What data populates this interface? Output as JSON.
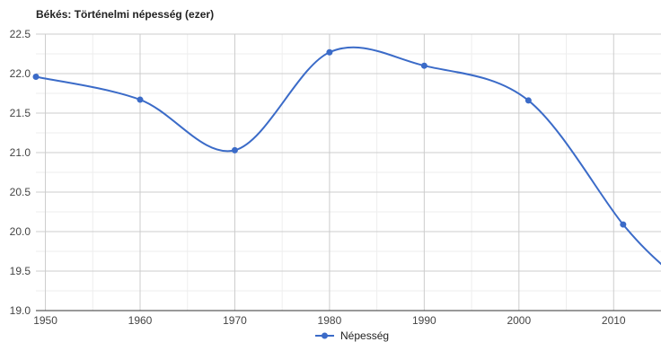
{
  "chart_data": {
    "type": "line",
    "title": "Békés: Történelmi népesség (ezer)",
    "xlabel": "",
    "ylabel": "",
    "series": [
      {
        "name": "Népesség",
        "color": "#3b6bc8",
        "points": [
          {
            "x": 1949,
            "y": 21.96
          },
          {
            "x": 1960,
            "y": 21.67
          },
          {
            "x": 1970,
            "y": 21.03
          },
          {
            "x": 1980,
            "y": 22.27
          },
          {
            "x": 1990,
            "y": 22.1
          },
          {
            "x": 2001,
            "y": 21.66
          },
          {
            "x": 2011,
            "y": 20.09
          },
          {
            "x": 2016,
            "y": 19.48
          }
        ]
      }
    ],
    "x_ticks": [
      "1950",
      "1960",
      "1970",
      "1980",
      "1990",
      "2000",
      "2010"
    ],
    "y_ticks": [
      "19.0",
      "19.5",
      "20.0",
      "20.5",
      "21.0",
      "21.5",
      "22.0",
      "22.5"
    ],
    "xlim": [
      1949,
      2015
    ],
    "ylim": [
      19.0,
      22.5
    ],
    "grid": true,
    "smooth": true,
    "legend_position": "bottom"
  }
}
